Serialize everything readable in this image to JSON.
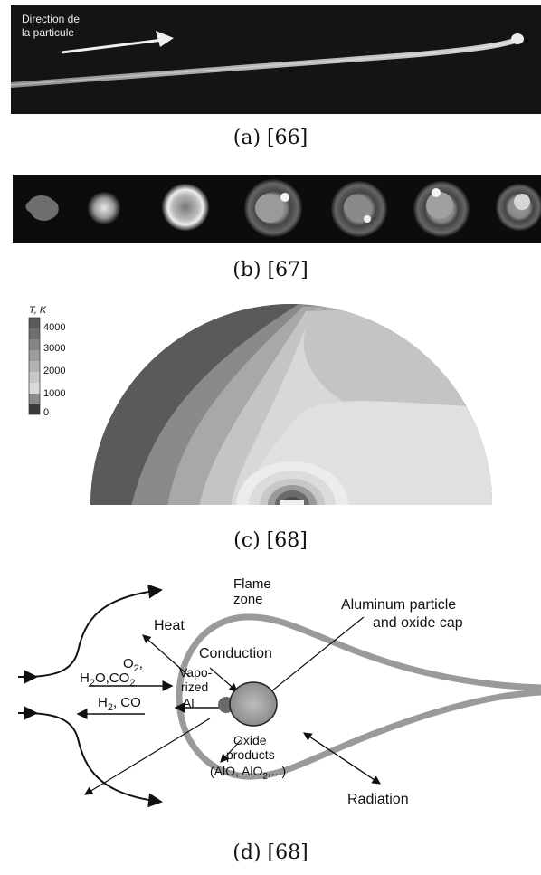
{
  "figure": {
    "panel_a": {
      "arrow_label_line1": "Direction de",
      "arrow_label_line2": "la particule",
      "caption": "(a) [66]"
    },
    "panel_b": {
      "caption": "(b) [67]"
    },
    "panel_c": {
      "colorbar_title": "T, K",
      "colorbar_ticks": [
        "4000",
        "3000",
        "2000",
        "1000",
        "0"
      ],
      "caption": "(c) [68]"
    },
    "panel_d": {
      "flame_zone_line1": "Flame",
      "flame_zone_line2": "zone",
      "heat": "Heat",
      "conduction": "Conduction",
      "particle_line1": "Aluminum particle",
      "particle_line2": "and oxide cap",
      "vapo_line1": "Vapo-",
      "vapo_line2": "rized",
      "vapo_line3": "Al",
      "oxidizers_line1": "O",
      "oxidizers_line2": "H",
      "products_line": "H",
      "oxide_line1": "Oxide",
      "oxide_line2": "products",
      "oxide_line3": "(AlO, AlO",
      "radiation": "Radiation",
      "caption": "(d) [68]"
    }
  },
  "colors": {
    "contour_levels": [
      "#5a5a5a",
      "#8a8a8a",
      "#a8a8a8",
      "#c4c4c4",
      "#d8d8d8",
      "#e6e6e6"
    ]
  }
}
